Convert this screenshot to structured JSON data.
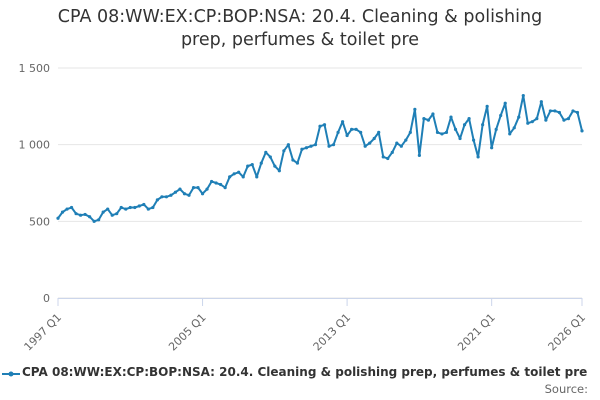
{
  "chart_data": {
    "type": "line",
    "title_lines": [
      "CPA 08:WW:EX:CP:BOP:NSA: 20.4. Cleaning & polishing",
      "prep, perfumes & toilet pre"
    ],
    "xlabel": "",
    "ylabel": "",
    "ylim": [
      0,
      1500
    ],
    "yticks": [
      0,
      500,
      1000,
      1500
    ],
    "ytick_labels": [
      "0",
      "500",
      "1 000",
      "1 500"
    ],
    "x_start": "1997 Q1",
    "x_end": "2026 Q1",
    "xtick_labels": [
      "1997 Q1",
      "2005 Q1",
      "2013 Q1",
      "2021 Q1",
      "2026 Q1"
    ],
    "xtick_positions": [
      0,
      32,
      64,
      96,
      116
    ],
    "grid": true,
    "legend_position": "bottom",
    "series": [
      {
        "name": "CPA 08:WW:EX:CP:BOP:NSA: 20.4. Cleaning & polishing prep, perfumes & toilet pre",
        "color": "#1f7fb6",
        "values": [
          520,
          560,
          580,
          590,
          550,
          540,
          545,
          530,
          500,
          510,
          560,
          580,
          540,
          550,
          590,
          580,
          590,
          590,
          600,
          610,
          580,
          590,
          640,
          660,
          660,
          670,
          690,
          710,
          680,
          670,
          720,
          720,
          680,
          710,
          760,
          750,
          740,
          720,
          790,
          810,
          820,
          790,
          860,
          870,
          790,
          880,
          950,
          920,
          860,
          830,
          960,
          1000,
          900,
          880,
          970,
          980,
          990,
          1000,
          1120,
          1130,
          990,
          1000,
          1080,
          1150,
          1060,
          1100,
          1100,
          1080,
          990,
          1010,
          1040,
          1080,
          920,
          910,
          950,
          1010,
          990,
          1030,
          1080,
          1230,
          930,
          1170,
          1160,
          1200,
          1080,
          1070,
          1080,
          1180,
          1100,
          1040,
          1130,
          1170,
          1030,
          920,
          1130,
          1250,
          980,
          1100,
          1190,
          1270,
          1070,
          1110,
          1180,
          1320,
          1140,
          1150,
          1170,
          1280,
          1160,
          1220,
          1220,
          1210,
          1160,
          1170,
          1220,
          1210,
          1090
        ]
      }
    ]
  },
  "legend": {
    "label": "CPA 08:WW:EX:CP:BOP:NSA: 20.4. Cleaning & polishing prep, perfumes & toilet pre"
  },
  "source": {
    "label": "Source:"
  }
}
